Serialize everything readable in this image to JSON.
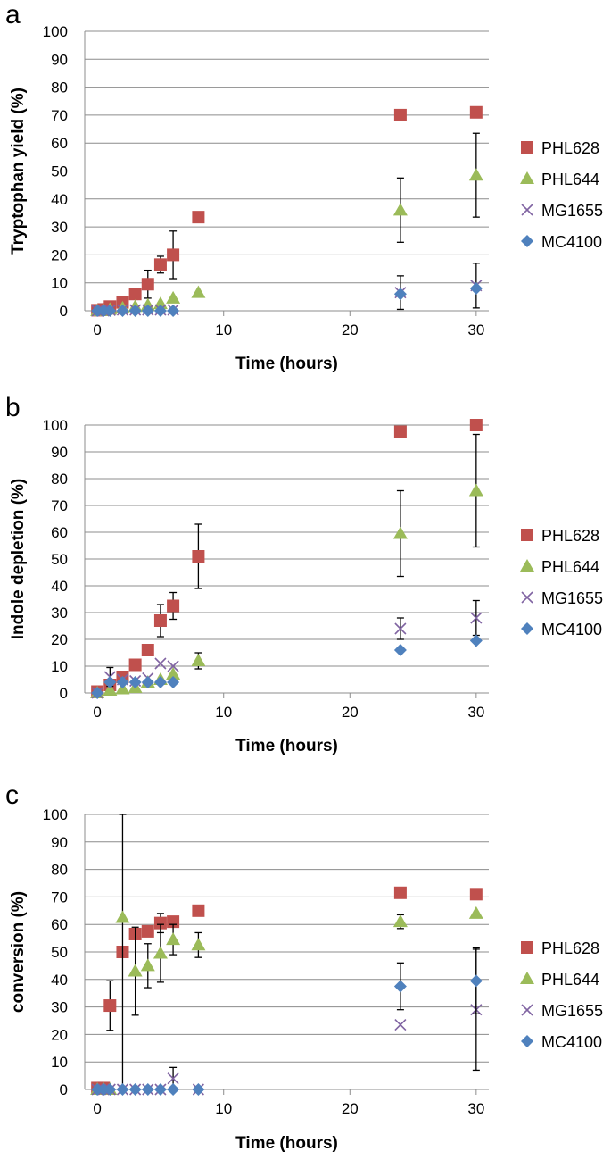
{
  "chart_data": [
    {
      "type": "scatter",
      "panel_label": "a",
      "xlabel": "Time (hours)",
      "ylabel": "Tryptophan yield (%)",
      "xlim": [
        -1,
        31
      ],
      "ylim": [
        0,
        100
      ],
      "xticks": [
        0,
        10,
        20,
        30
      ],
      "yticks": [
        0,
        10,
        20,
        30,
        40,
        50,
        60,
        70,
        80,
        90,
        100
      ],
      "grid": "horizontal",
      "legend": "right",
      "series": [
        {
          "name": "PHL628",
          "marker": "square",
          "color": "#C0504D",
          "x": [
            0,
            0.5,
            1,
            2,
            3,
            4,
            5,
            6,
            8,
            24,
            30
          ],
          "y": [
            0.2,
            0.5,
            1.5,
            3,
            6,
            9.5,
            16.5,
            20,
            33.5,
            70,
            71
          ],
          "err": [
            0,
            0,
            0,
            0,
            0,
            5,
            3,
            8.5,
            0,
            0,
            0
          ]
        },
        {
          "name": "PHL644",
          "marker": "triangle",
          "color": "#9BBB59",
          "x": [
            0,
            0.5,
            1,
            2,
            3,
            4,
            5,
            6,
            8,
            24,
            30
          ],
          "y": [
            0,
            0,
            0.5,
            1,
            1.5,
            2,
            2.5,
            4.5,
            6.5,
            36,
            48.5
          ],
          "err": [
            0,
            0,
            0,
            0,
            0,
            0,
            0,
            0,
            0,
            11.5,
            15
          ]
        },
        {
          "name": "MG1655",
          "marker": "cross",
          "color": "#8064A2",
          "x": [
            0,
            0.5,
            1,
            2,
            3,
            4,
            5,
            6,
            24,
            30
          ],
          "y": [
            0,
            0,
            0.2,
            0.3,
            0.3,
            0.3,
            0.3,
            0.3,
            6.5,
            9
          ],
          "err": [
            0,
            0,
            0,
            0,
            0,
            0,
            0,
            0,
            6,
            8
          ]
        },
        {
          "name": "MC4100",
          "marker": "diamond",
          "color": "#4F81BD",
          "x": [
            0,
            0.5,
            1,
            2,
            3,
            4,
            5,
            6,
            24,
            30
          ],
          "y": [
            0,
            0,
            0,
            0,
            0,
            0,
            0,
            0,
            6,
            8
          ],
          "err": [
            0,
            0,
            0,
            0,
            0,
            0,
            0,
            0,
            0,
            0
          ]
        }
      ]
    },
    {
      "type": "scatter",
      "panel_label": "b",
      "xlabel": "Time (hours)",
      "ylabel": "Indole depletion (%)",
      "xlim": [
        -1,
        31
      ],
      "ylim": [
        0,
        100
      ],
      "xticks": [
        0,
        10,
        20,
        30
      ],
      "yticks": [
        0,
        10,
        20,
        30,
        40,
        50,
        60,
        70,
        80,
        90,
        100
      ],
      "grid": "horizontal",
      "legend": "right",
      "series": [
        {
          "name": "PHL628",
          "marker": "square",
          "color": "#C0504D",
          "x": [
            0,
            1,
            2,
            3,
            4,
            5,
            6,
            8,
            24,
            30
          ],
          "y": [
            0.5,
            3,
            6,
            10.5,
            16,
            27,
            32.5,
            51,
            97.5,
            100
          ],
          "err": [
            0,
            0,
            0,
            0,
            0,
            6,
            5,
            12,
            0,
            0
          ]
        },
        {
          "name": "PHL644",
          "marker": "triangle",
          "color": "#9BBB59",
          "x": [
            0,
            1,
            2,
            3,
            4,
            5,
            6,
            8,
            24,
            30
          ],
          "y": [
            0,
            1,
            1.5,
            2,
            4,
            5,
            7,
            12,
            59.5,
            75.5
          ],
          "err": [
            0,
            0,
            0,
            0,
            0,
            0,
            0,
            3,
            16,
            21
          ]
        },
        {
          "name": "MG1655",
          "marker": "cross",
          "color": "#8064A2",
          "x": [
            0,
            1,
            2,
            3,
            4,
            5,
            6,
            24,
            30
          ],
          "y": [
            0,
            6,
            5,
            4.5,
            5.5,
            11,
            10,
            24,
            28
          ],
          "err": [
            0,
            3.5,
            0,
            0,
            0,
            0,
            0,
            4,
            6.5
          ]
        },
        {
          "name": "MC4100",
          "marker": "diamond",
          "color": "#4F81BD",
          "x": [
            0,
            1,
            2,
            3,
            4,
            5,
            6,
            24,
            30
          ],
          "y": [
            0,
            4,
            4,
            4,
            4,
            4,
            4,
            16,
            19.5
          ],
          "err": [
            0,
            0,
            0,
            0,
            0,
            0,
            0,
            0,
            0
          ]
        }
      ]
    },
    {
      "type": "scatter",
      "panel_label": "c",
      "xlabel": "Time (hours)",
      "ylabel": "conversion (%)",
      "xlim": [
        -1,
        31
      ],
      "ylim": [
        0,
        100
      ],
      "xticks": [
        0,
        10,
        20,
        30
      ],
      "yticks": [
        0,
        10,
        20,
        30,
        40,
        50,
        60,
        70,
        80,
        90,
        100
      ],
      "grid": "horizontal",
      "legend": "right",
      "series": [
        {
          "name": "PHL628",
          "marker": "square",
          "color": "#C0504D",
          "x": [
            0,
            0.5,
            1,
            2,
            3,
            4,
            5,
            6,
            8,
            24,
            30
          ],
          "y": [
            0.5,
            0.5,
            30.5,
            50,
            56.5,
            57.5,
            60.5,
            61,
            65,
            71.5,
            71
          ],
          "err": [
            0,
            0,
            9,
            0,
            0,
            0,
            3.5,
            0,
            0,
            0,
            0
          ]
        },
        {
          "name": "PHL644",
          "marker": "triangle",
          "color": "#9BBB59",
          "x": [
            0,
            0.5,
            1,
            2,
            3,
            4,
            5,
            6,
            8,
            24,
            30
          ],
          "y": [
            0,
            0,
            0,
            62.5,
            43,
            45,
            49.5,
            54.5,
            52.5,
            61,
            64
          ],
          "err": [
            0,
            0,
            0,
            62.5,
            16,
            8,
            10.5,
            5.5,
            4.5,
            2.5,
            0
          ]
        },
        {
          "name": "MG1655",
          "marker": "cross",
          "color": "#8064A2",
          "x": [
            0,
            0.5,
            1,
            2,
            3,
            4,
            5,
            6,
            8,
            24,
            30
          ],
          "y": [
            0,
            0,
            0,
            0,
            0,
            0,
            0,
            4,
            0,
            23.5,
            29
          ],
          "err": [
            0,
            0,
            0,
            0,
            0,
            0,
            0,
            4,
            0,
            0,
            22
          ]
        },
        {
          "name": "MC4100",
          "marker": "diamond",
          "color": "#4F81BD",
          "x": [
            0,
            0.5,
            1,
            2,
            3,
            4,
            5,
            6,
            8,
            24,
            30
          ],
          "y": [
            0,
            0,
            0,
            0,
            0,
            0,
            0,
            0,
            0,
            37.5,
            39.5
          ],
          "err": [
            0,
            0,
            0,
            0,
            0,
            0,
            0,
            0,
            0,
            8.5,
            12
          ]
        }
      ]
    }
  ]
}
